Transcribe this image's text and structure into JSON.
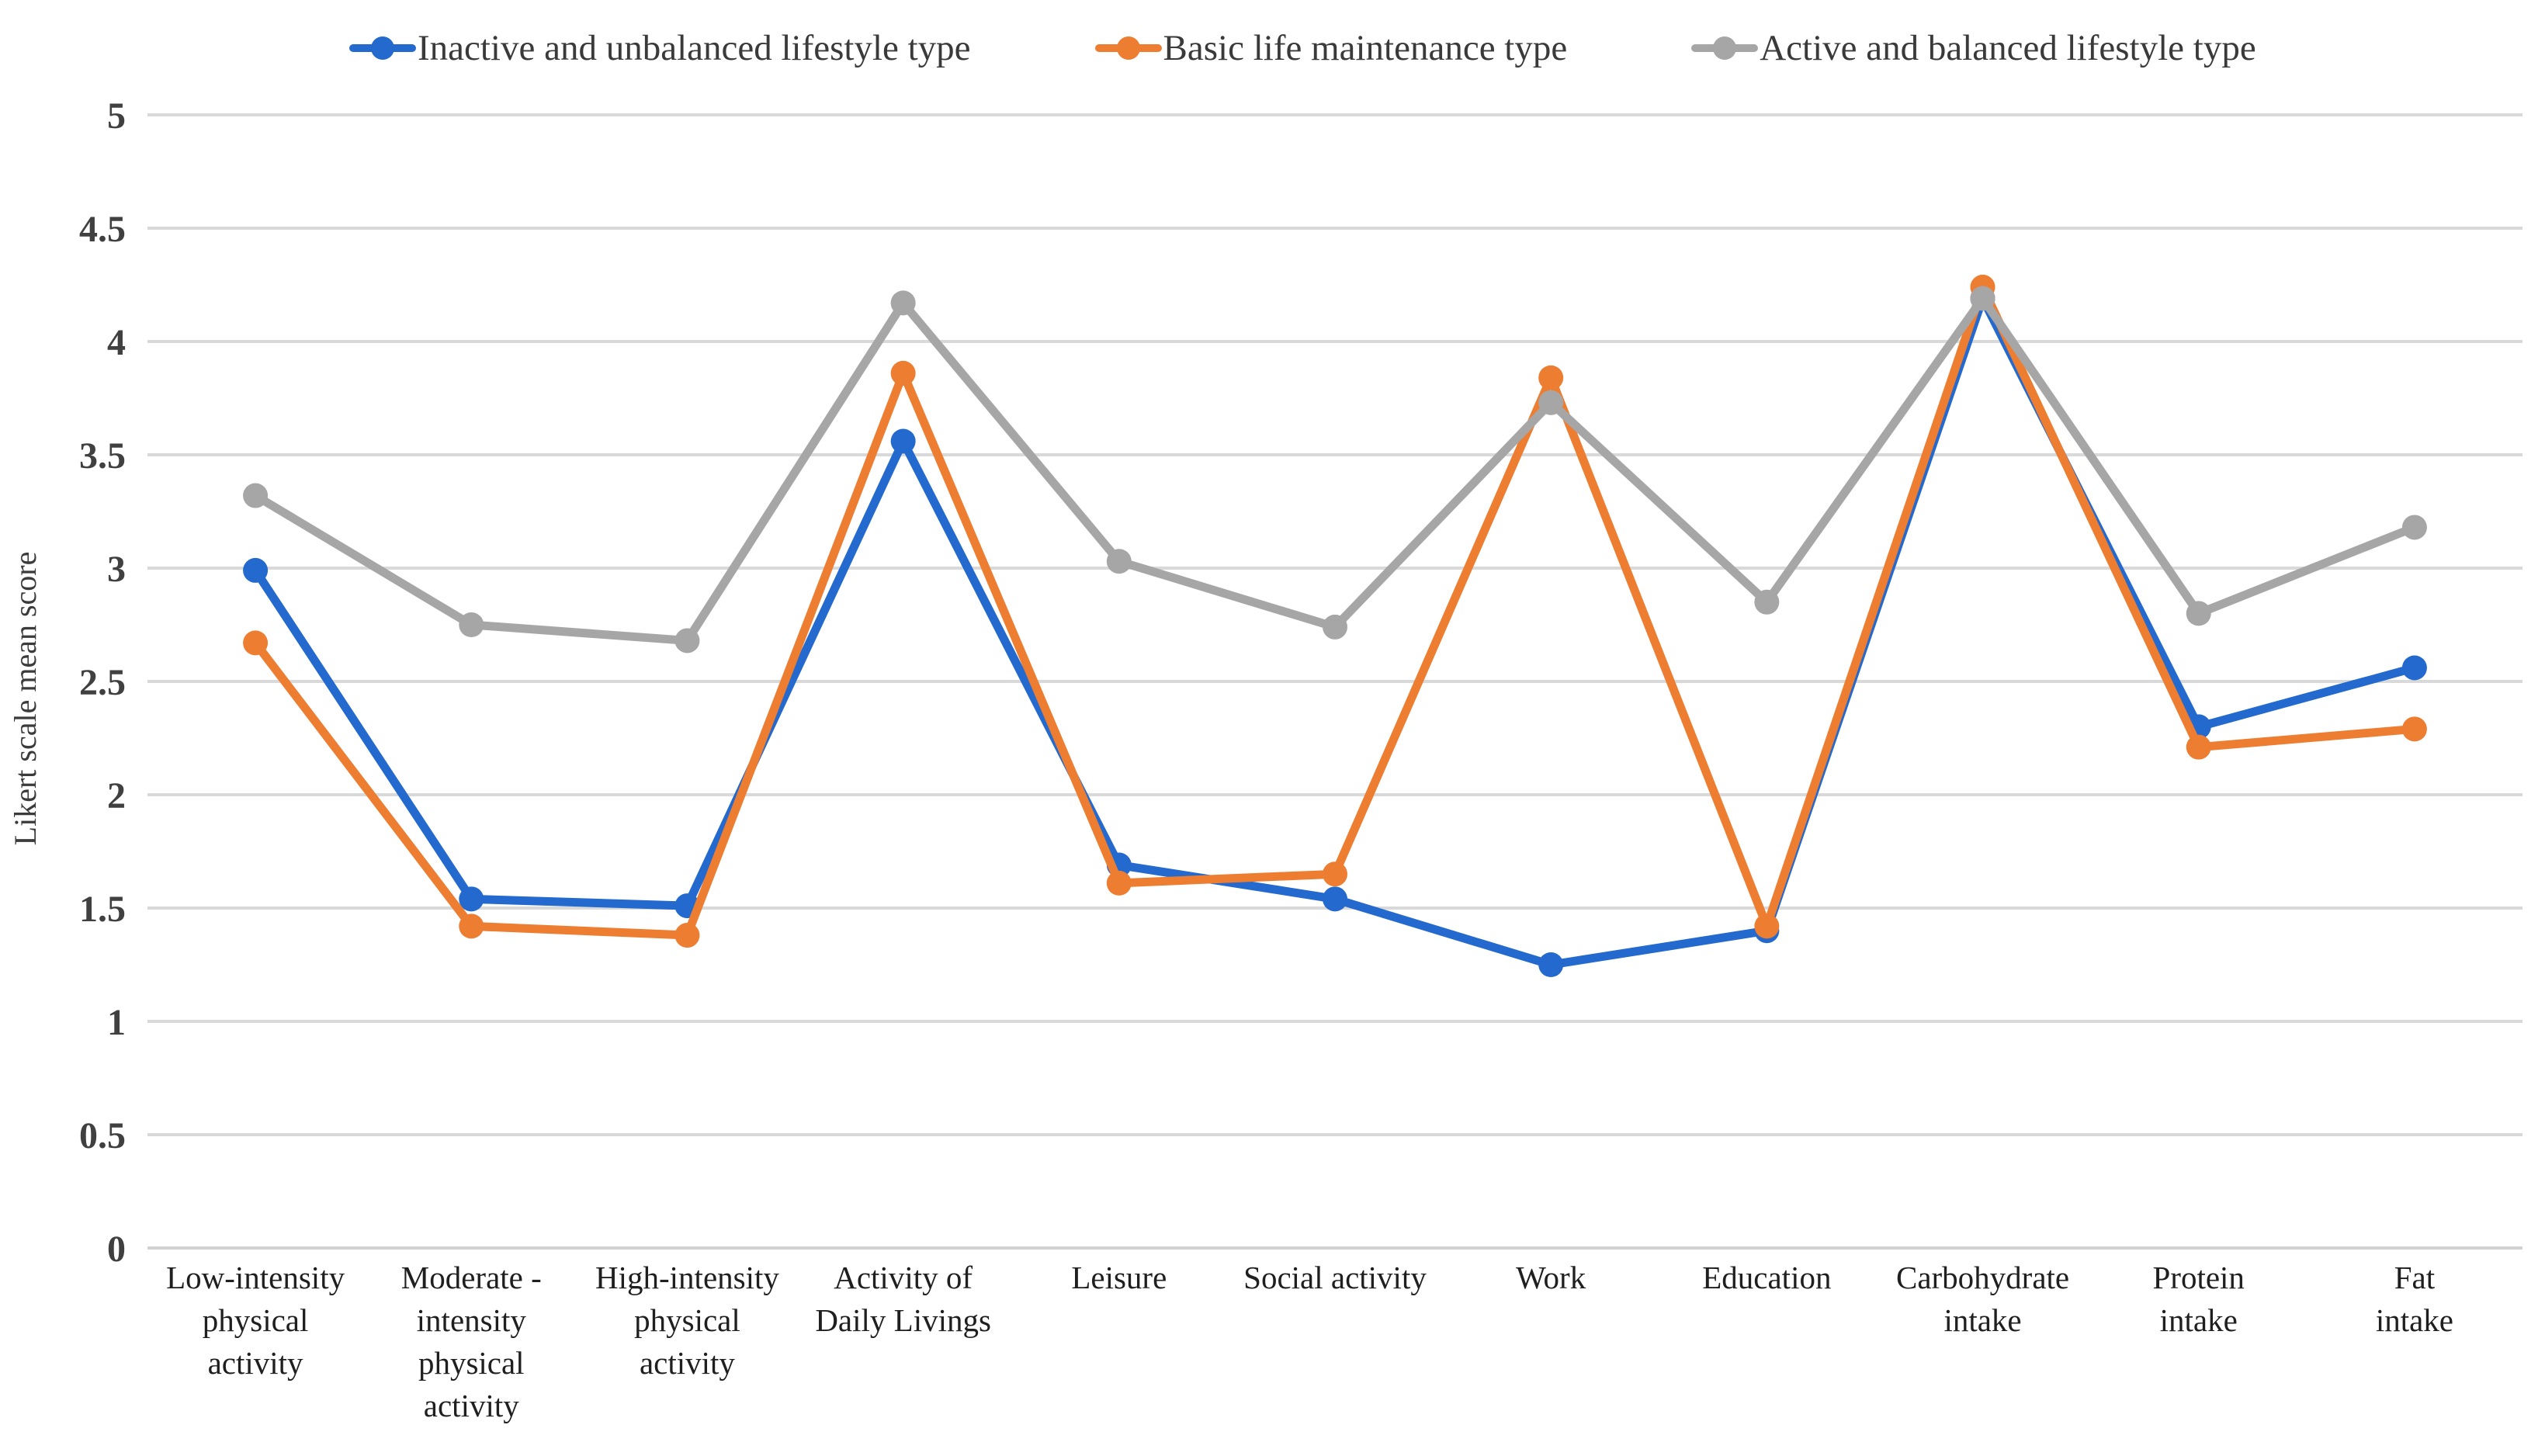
{
  "chart_data": {
    "type": "line",
    "title": "",
    "ylabel": "Likert scale mean score",
    "xlabel": "",
    "ylim": [
      0,
      5
    ],
    "ytick_step": 0.5,
    "yticks": [
      "0",
      "0.5",
      "1",
      "1.5",
      "2",
      "2.5",
      "3",
      "3.5",
      "4",
      "4.5",
      "5"
    ],
    "grid": true,
    "legend_position": "top",
    "categories": [
      "Low-intensity physical activity",
      "Moderate - intensity physical activity",
      "High-intensity physical activity",
      "Activity of Daily Livings",
      "Leisure",
      "Social activity",
      "Work",
      "Education",
      "Carbohydrate intake",
      "Protein intake",
      "Fat intake"
    ],
    "category_lines": [
      [
        "Low-intensity",
        "physical",
        "activity"
      ],
      [
        "Moderate -",
        "intensity",
        "physical",
        "activity"
      ],
      [
        "High-intensity",
        "physical",
        "activity"
      ],
      [
        "Activity of",
        "Daily Livings"
      ],
      [
        "Leisure"
      ],
      [
        "Social activity"
      ],
      [
        "Work"
      ],
      [
        "Education"
      ],
      [
        "Carbohydrate",
        "intake"
      ],
      [
        "Protein",
        "intake"
      ],
      [
        "Fat",
        "intake"
      ]
    ],
    "series": [
      {
        "name": "Inactive and unbalanced lifestyle type",
        "color": "#2369CE",
        "values": [
          2.99,
          1.54,
          1.51,
          3.56,
          1.69,
          1.54,
          1.25,
          1.4,
          4.19,
          2.3,
          2.56
        ]
      },
      {
        "name": "Basic life maintenance type",
        "color": "#ED7D31",
        "values": [
          2.67,
          1.42,
          1.38,
          3.86,
          1.61,
          1.65,
          3.84,
          1.42,
          4.24,
          2.21,
          2.29
        ]
      },
      {
        "name": "Active and balanced lifestyle type",
        "color": "#A6A6A6",
        "values": [
          3.32,
          2.75,
          2.68,
          4.17,
          3.03,
          2.74,
          3.73,
          2.85,
          4.19,
          2.8,
          3.18
        ]
      }
    ]
  },
  "style_colors": {
    "gridline": "#D9D9D9",
    "axis_line": "#D2D2D2",
    "tick_text": "#404040",
    "category_text": "#1f1f1f",
    "ylabel_text": "#3b3b3b"
  }
}
